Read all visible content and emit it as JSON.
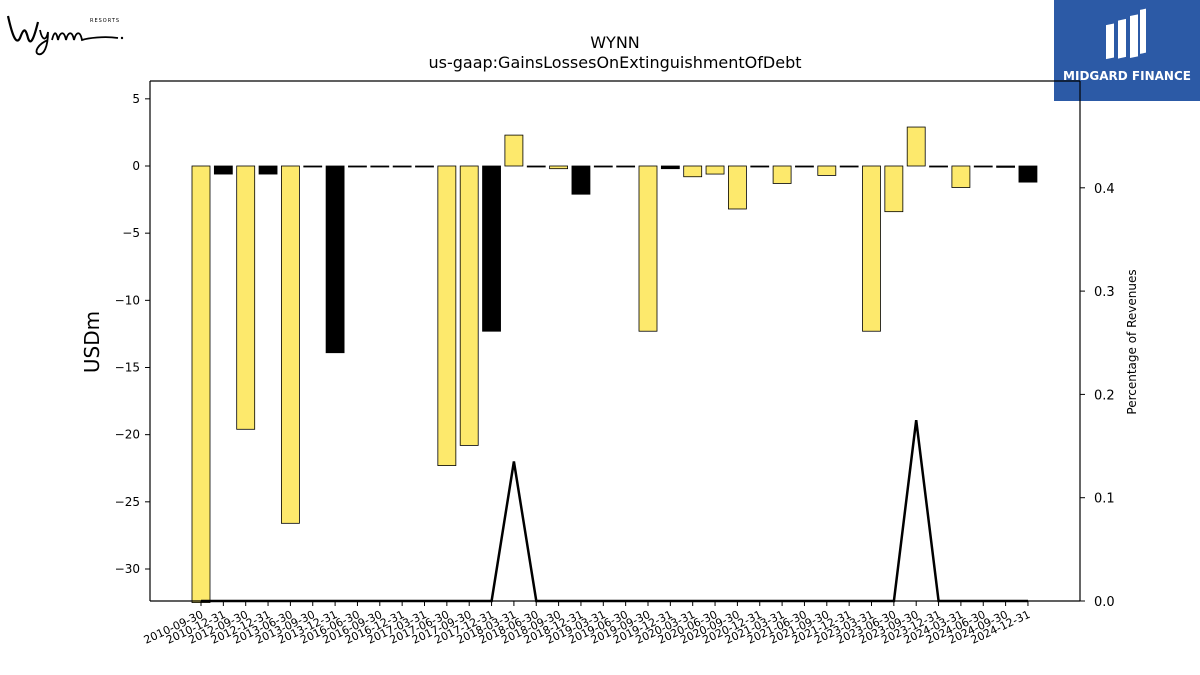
{
  "header": {
    "title": "WYNN",
    "subtitle": "us-gaap:GainsLossesOnExtinguishmentOfDebt"
  },
  "logos": {
    "left": {
      "text": "Wynn",
      "small": "RESORTS"
    },
    "right": {
      "text": "MIDGARD FINANCE",
      "background": "#2c5aa6"
    }
  },
  "colors": {
    "bar_positive_period": "#fde96c",
    "bar_black": "#000000",
    "line": "#000000",
    "axis": "#000000"
  },
  "chart_data": {
    "type": "bar",
    "title": "WYNN",
    "subtitle": "us-gaap:GainsLossesOnExtinguishmentOfDebt",
    "ylabel": "USDm",
    "y2label": "Percentage of Revenues",
    "ylim": [
      -32.5,
      5.5
    ],
    "y2lim": [
      0,
      0.5
    ],
    "yticks": [
      5,
      0,
      -5,
      -10,
      -15,
      -20,
      -25,
      -30
    ],
    "yticklabels": [
      "5",
      "0",
      "−5",
      "−10",
      "−15",
      "−20",
      "−25",
      "−30"
    ],
    "y2ticks": [
      0.0,
      0.1,
      0.2,
      0.3,
      0.4
    ],
    "y2ticklabels": [
      "0.0",
      "0.1",
      "0.2",
      "0.3",
      "0.4"
    ],
    "categories": [
      "2010-09-30",
      "2010-12-31",
      "2012-09-30",
      "2012-12-31",
      "2013-06-30",
      "2013-09-30",
      "2013-12-31",
      "2016-06-30",
      "2016-09-30",
      "2016-12-31",
      "2017-03-31",
      "2017-06-30",
      "2017-09-30",
      "2017-12-31",
      "2018-03-31",
      "2018-06-30",
      "2018-09-30",
      "2018-12-31",
      "2019-03-31",
      "2019-06-30",
      "2019-09-30",
      "2019-12-31",
      "2020-03-31",
      "2020-06-30",
      "2020-09-30",
      "2020-12-31",
      "2021-03-31",
      "2021-06-30",
      "2021-09-30",
      "2021-12-31",
      "2023-03-31",
      "2023-06-30",
      "2023-09-30",
      "2023-12-31",
      "2024-03-31",
      "2024-06-30",
      "2024-09-30",
      "2024-12-31"
    ],
    "values": [
      -32.5,
      -0.6,
      -19.6,
      -0.6,
      -26.6,
      0,
      -13.9,
      0,
      0,
      0,
      0,
      -22.3,
      -20.8,
      -12.3,
      2.3,
      0,
      -0.2,
      -2.1,
      0,
      0,
      -12.3,
      -0.2,
      -0.8,
      -0.6,
      -3.2,
      0,
      -1.3,
      0,
      -0.7,
      0,
      -12.3,
      -3.4,
      2.9,
      0,
      -1.6,
      0,
      -0.1,
      -1.2
    ],
    "bar_color_keys": [
      "y",
      "k",
      "y",
      "k",
      "y",
      "k",
      "k",
      "k",
      "k",
      "k",
      "k",
      "y",
      "y",
      "k",
      "y",
      "k",
      "y",
      "k",
      "k",
      "k",
      "y",
      "k",
      "y",
      "y",
      "y",
      "k",
      "y",
      "k",
      "y",
      "k",
      "y",
      "y",
      "y",
      "k",
      "y",
      "k",
      "k",
      "k"
    ],
    "series": [
      {
        "name": "Percentage of Revenues",
        "type": "line",
        "axis": "right",
        "values": [
          0,
          0,
          0,
          0,
          0,
          0,
          0,
          0,
          0,
          0,
          0,
          0,
          0,
          0,
          0.135,
          0,
          0,
          0,
          0,
          0,
          0,
          0,
          0,
          0,
          0,
          0,
          0,
          0,
          0,
          0,
          0,
          0,
          0.175,
          0,
          0,
          0,
          0,
          0
        ]
      }
    ],
    "grid": false,
    "legend": "none"
  }
}
